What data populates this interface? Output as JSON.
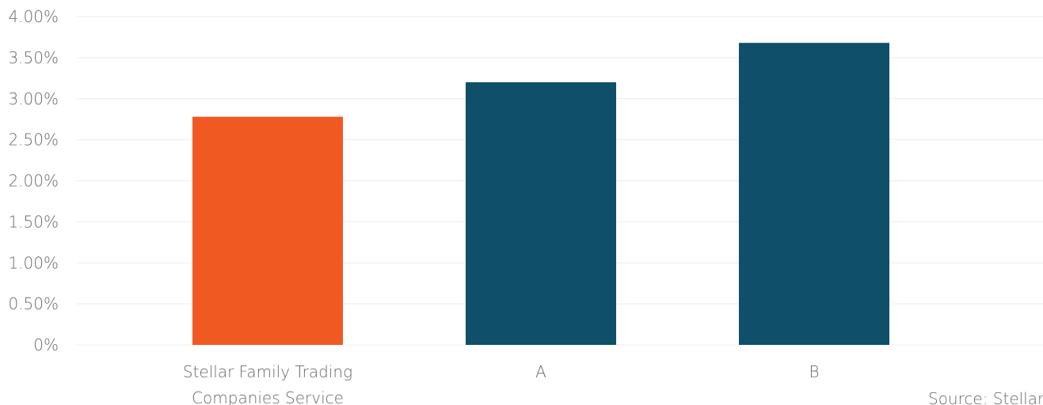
{
  "chart_data": {
    "type": "bar",
    "categories": [
      "Stellar Family Trading Companies Service",
      "A",
      "B"
    ],
    "category_lines": [
      [
        "Stellar Family Trading",
        "Companies Service"
      ],
      [
        "A"
      ],
      [
        "B"
      ]
    ],
    "values": [
      2.78,
      3.2,
      3.68
    ],
    "value_unit": "%",
    "bar_colors": [
      "#f05a22",
      "#0f4f69",
      "#0f4f69"
    ],
    "ylim": [
      0,
      4
    ],
    "y_ticks": [
      "0%",
      "0.50%",
      "1.00%",
      "1.50%",
      "2.00%",
      "2.50%",
      "3.00%",
      "3.50%",
      "4.00%"
    ],
    "y_tick_values": [
      0,
      0.5,
      1,
      1.5,
      2,
      2.5,
      3,
      3.5,
      4
    ],
    "grid": true,
    "title": "",
    "xlabel": "",
    "ylabel": "",
    "source": "Source: Stellar"
  }
}
